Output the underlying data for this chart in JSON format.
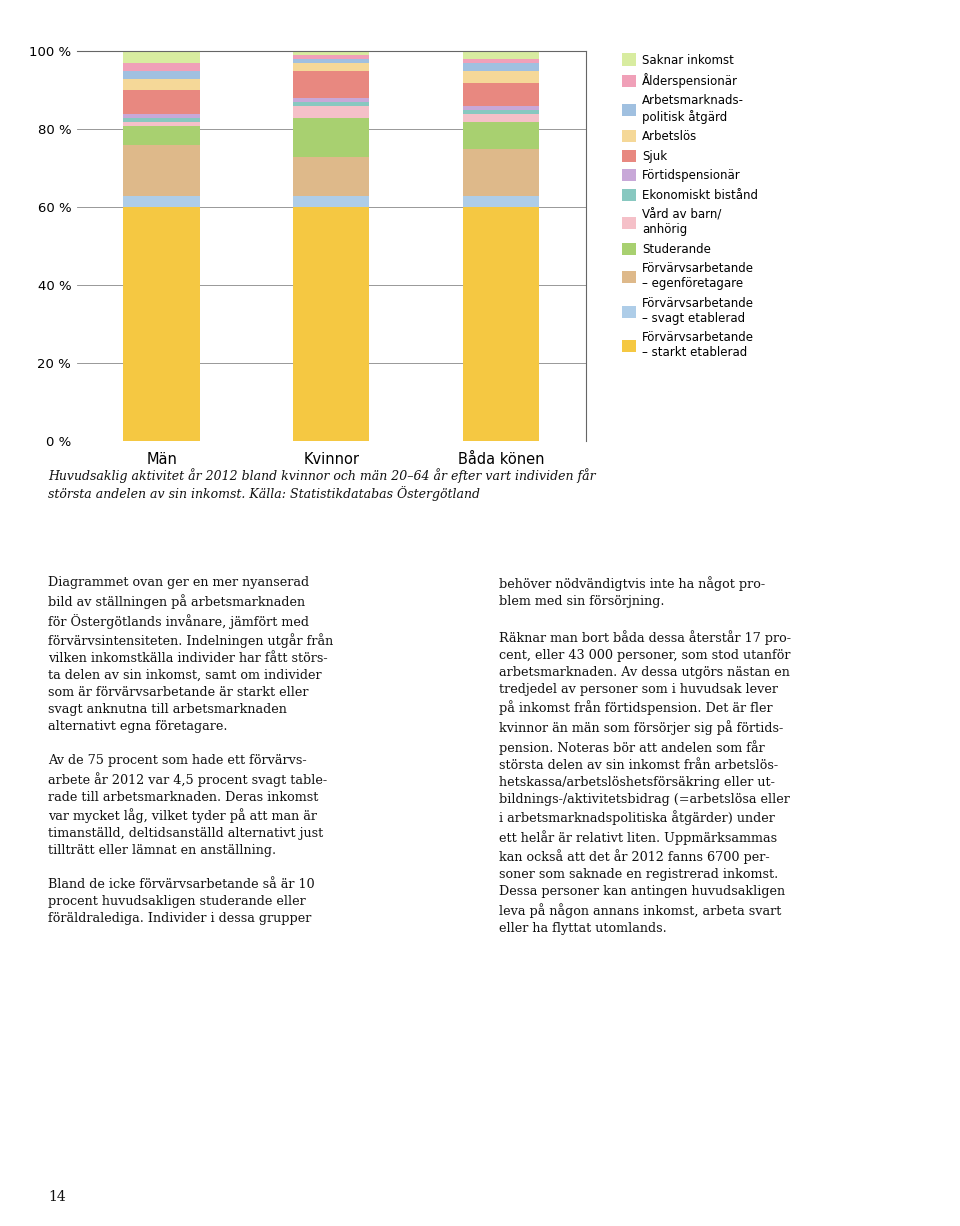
{
  "categories": [
    "Män",
    "Kvinnor",
    "Båda könen"
  ],
  "segments": [
    {
      "label": "Förvärvsarbetande\n– starkt etablerad",
      "color": "#F5C842",
      "values": [
        60,
        60,
        60
      ]
    },
    {
      "label": "Förvärvsarbetande\n– svagt etablerad",
      "color": "#AECDE8",
      "values": [
        3,
        3,
        3
      ]
    },
    {
      "label": "Förvärvsarbetande\n– egenföretagare",
      "color": "#DEB98A",
      "values": [
        13,
        10,
        12
      ]
    },
    {
      "label": "Studerande",
      "color": "#A8D070",
      "values": [
        5,
        10,
        7
      ]
    },
    {
      "label": "Vård av barn/\nanhörig",
      "color": "#F5C0C8",
      "values": [
        1,
        3,
        2
      ]
    },
    {
      "label": "Ekonomiskt bistånd",
      "color": "#88C8C0",
      "values": [
        1,
        1,
        1
      ]
    },
    {
      "label": "Förtidspensionär",
      "color": "#C8A8D8",
      "values": [
        1,
        1,
        1
      ]
    },
    {
      "label": "Sjuk",
      "color": "#E88880",
      "values": [
        6,
        7,
        6
      ]
    },
    {
      "label": "Arbetslös",
      "color": "#F5D898",
      "values": [
        3,
        2,
        3
      ]
    },
    {
      "label": "Arbetsmarknads-\npolitisk åtgärd",
      "color": "#A0C0E0",
      "values": [
        2,
        1,
        2
      ]
    },
    {
      "label": "Ålderspensionär",
      "color": "#F0A0B8",
      "values": [
        2,
        1,
        1
      ]
    },
    {
      "label": "Saknar inkomst",
      "color": "#D8ECA0",
      "values": [
        3,
        2,
        2
      ]
    }
  ],
  "ylim": [
    0,
    100
  ],
  "yticks": [
    0,
    20,
    40,
    60,
    80,
    100
  ],
  "ytick_labels": [
    "0 %",
    "20 %",
    "40 %",
    "60 %",
    "80 %",
    "100 %"
  ],
  "background_color": "#FFFFFF",
  "page_bg_color": "#FAFAF8",
  "top_bar_color": "#F5B8C8",
  "caption_bar_color": "#F0C0C8",
  "bar_width": 0.45,
  "legend_fontsize": 8.5,
  "tick_fontsize": 9.5,
  "xlabel_fontsize": 10.5,
  "caption_text": "Huvudsaklig aktivitet år 2012 bland kvinnor och män 20–64 år efter vart individen får\nstörsta andelen av sin inkomst. Källa: Statistikdatabas Östergötland",
  "left_col_text": "Diagrammet ovan ger en mer nyanserad\nbild av ställningen på arbetsmarknaden\nför Östergötlands invånare, jämfört med\nförvärvsintensiteten. Indelningen utgår från\nvilken inkomstkälla individer har fått störs-\nta delen av sin inkomst, samt om individer\nsom är förvärvsarbetande är starkt eller\nsvagt anknutna till arbetsmarknaden\nalternativt egna företagare.\n\nAv de 75 procent som hade ett förvärvs-\narbete år 2012 var 4,5 procent svagt table-\nrade till arbetsmarknaden. Deras inkomst\nvar mycket låg, vilket tyder på att man är\ntimanställd, deltidsanställd alternativt just\ntillträtt eller lämnat en anställning.\n\nBland de icke förvärvsarbetande så är 10\nprocent huvudsakligen studerande eller\nföräldralediga. Individer i dessa grupper",
  "right_col_text": "behöver nödvändigtvis inte ha något pro-\nblem med sin försörjning.\n\nRäknar man bort båda dessa återstår 17 pro-\ncent, eller 43 000 personer, som stod utanför\narbetsmarknaden. Av dessa utgörs nästan en\ntredjedel av personer som i huvudsak lever\npå inkomst från förtidspension. Det är fler\nkvinnor än män som försörjer sig på förtids-\npension. Noteras bör att andelen som får\nstörsta delen av sin inkomst från arbetslös-\nhetskassa/arbetslöshetsförsäkring eller ut-\nbildnings-/aktivitetsbidrag (=arbetslösa eller\ni arbetsmarknadspolitiska åtgärder) under\nett helår är relativt liten. Uppmärksammas\nkan också att det år 2012 fanns 6700 per-\nsoner som saknade en registrerad inkomst.\nDessa personer kan antingen huvudsakligen\nleva på någon annans inkomst, arbeta svart\neller ha flyttat utomlands.",
  "page_number": "14"
}
